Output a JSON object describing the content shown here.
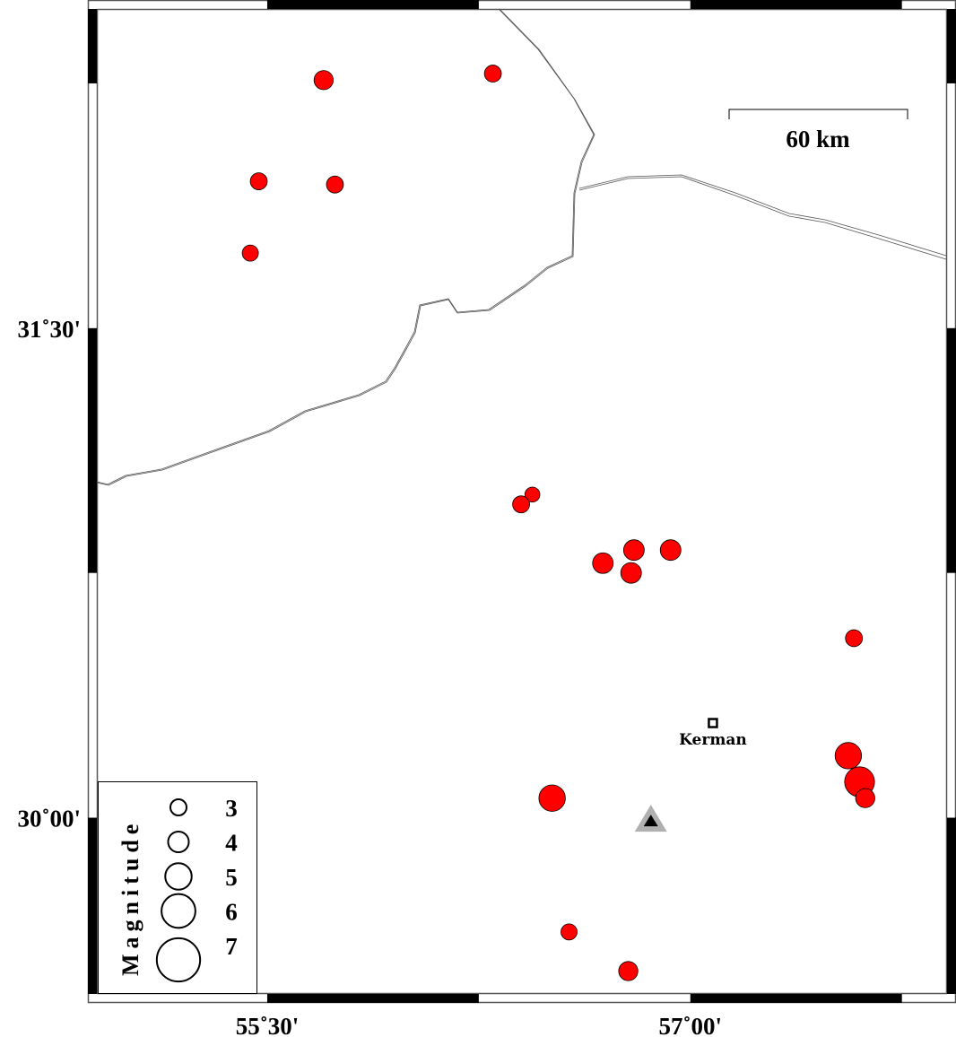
{
  "map": {
    "lon_range": [
      54.896,
      57.91
    ],
    "lat_range": [
      29.46,
      32.478
    ],
    "frame_band_minutes": 45,
    "lat_labels": [
      {
        "text": "31˚30'",
        "lat": 31.5
      },
      {
        "text": "30˚00'",
        "lat": 30.0
      }
    ],
    "lon_labels": [
      {
        "text": "55˚30'",
        "lon": 55.5
      },
      {
        "text": "57˚00'",
        "lon": 57.0
      }
    ],
    "scale_bar": {
      "label": "60 km",
      "length_km": 60
    },
    "city": {
      "name": "Kerman",
      "lon": 57.08,
      "lat": 30.29,
      "icon": "square-marker-icon"
    },
    "station": {
      "lon": 56.86,
      "lat": 29.99,
      "icon": "triangle-station-icon",
      "outer_color": "#b0b0b0",
      "inner_color": "#000000"
    },
    "event_color": "#ff0000",
    "events": [
      {
        "lon": 55.7,
        "lat": 32.26,
        "mag": 3.7
      },
      {
        "lon": 56.3,
        "lat": 32.28,
        "mag": 3.2
      },
      {
        "lon": 55.47,
        "lat": 31.95,
        "mag": 3.2
      },
      {
        "lon": 55.74,
        "lat": 31.94,
        "mag": 3.2
      },
      {
        "lon": 55.44,
        "lat": 31.73,
        "mag": 3.0
      },
      {
        "lon": 56.44,
        "lat": 30.99,
        "mag": 2.7
      },
      {
        "lon": 56.4,
        "lat": 30.96,
        "mag": 3.2
      },
      {
        "lon": 56.69,
        "lat": 30.78,
        "mag": 4.0
      },
      {
        "lon": 56.8,
        "lat": 30.82,
        "mag": 4.0
      },
      {
        "lon": 56.79,
        "lat": 30.75,
        "mag": 4.0
      },
      {
        "lon": 56.93,
        "lat": 30.82,
        "mag": 4.0
      },
      {
        "lon": 57.58,
        "lat": 30.55,
        "mag": 3.2
      },
      {
        "lon": 57.56,
        "lat": 30.19,
        "mag": 5.0
      },
      {
        "lon": 57.6,
        "lat": 30.11,
        "mag": 5.5
      },
      {
        "lon": 57.62,
        "lat": 30.06,
        "mag": 3.7
      },
      {
        "lon": 56.51,
        "lat": 30.06,
        "mag": 5.0
      },
      {
        "lon": 56.57,
        "lat": 29.65,
        "mag": 3.0
      },
      {
        "lon": 56.78,
        "lat": 29.53,
        "mag": 3.7
      }
    ],
    "legend": {
      "title": "Magnitude",
      "items": [
        {
          "label": "3",
          "mag": 3
        },
        {
          "label": "4",
          "mag": 4
        },
        {
          "label": "5",
          "mag": 5
        },
        {
          "label": "6",
          "mag": 6
        },
        {
          "label": "7",
          "mag": 7
        }
      ]
    }
  }
}
